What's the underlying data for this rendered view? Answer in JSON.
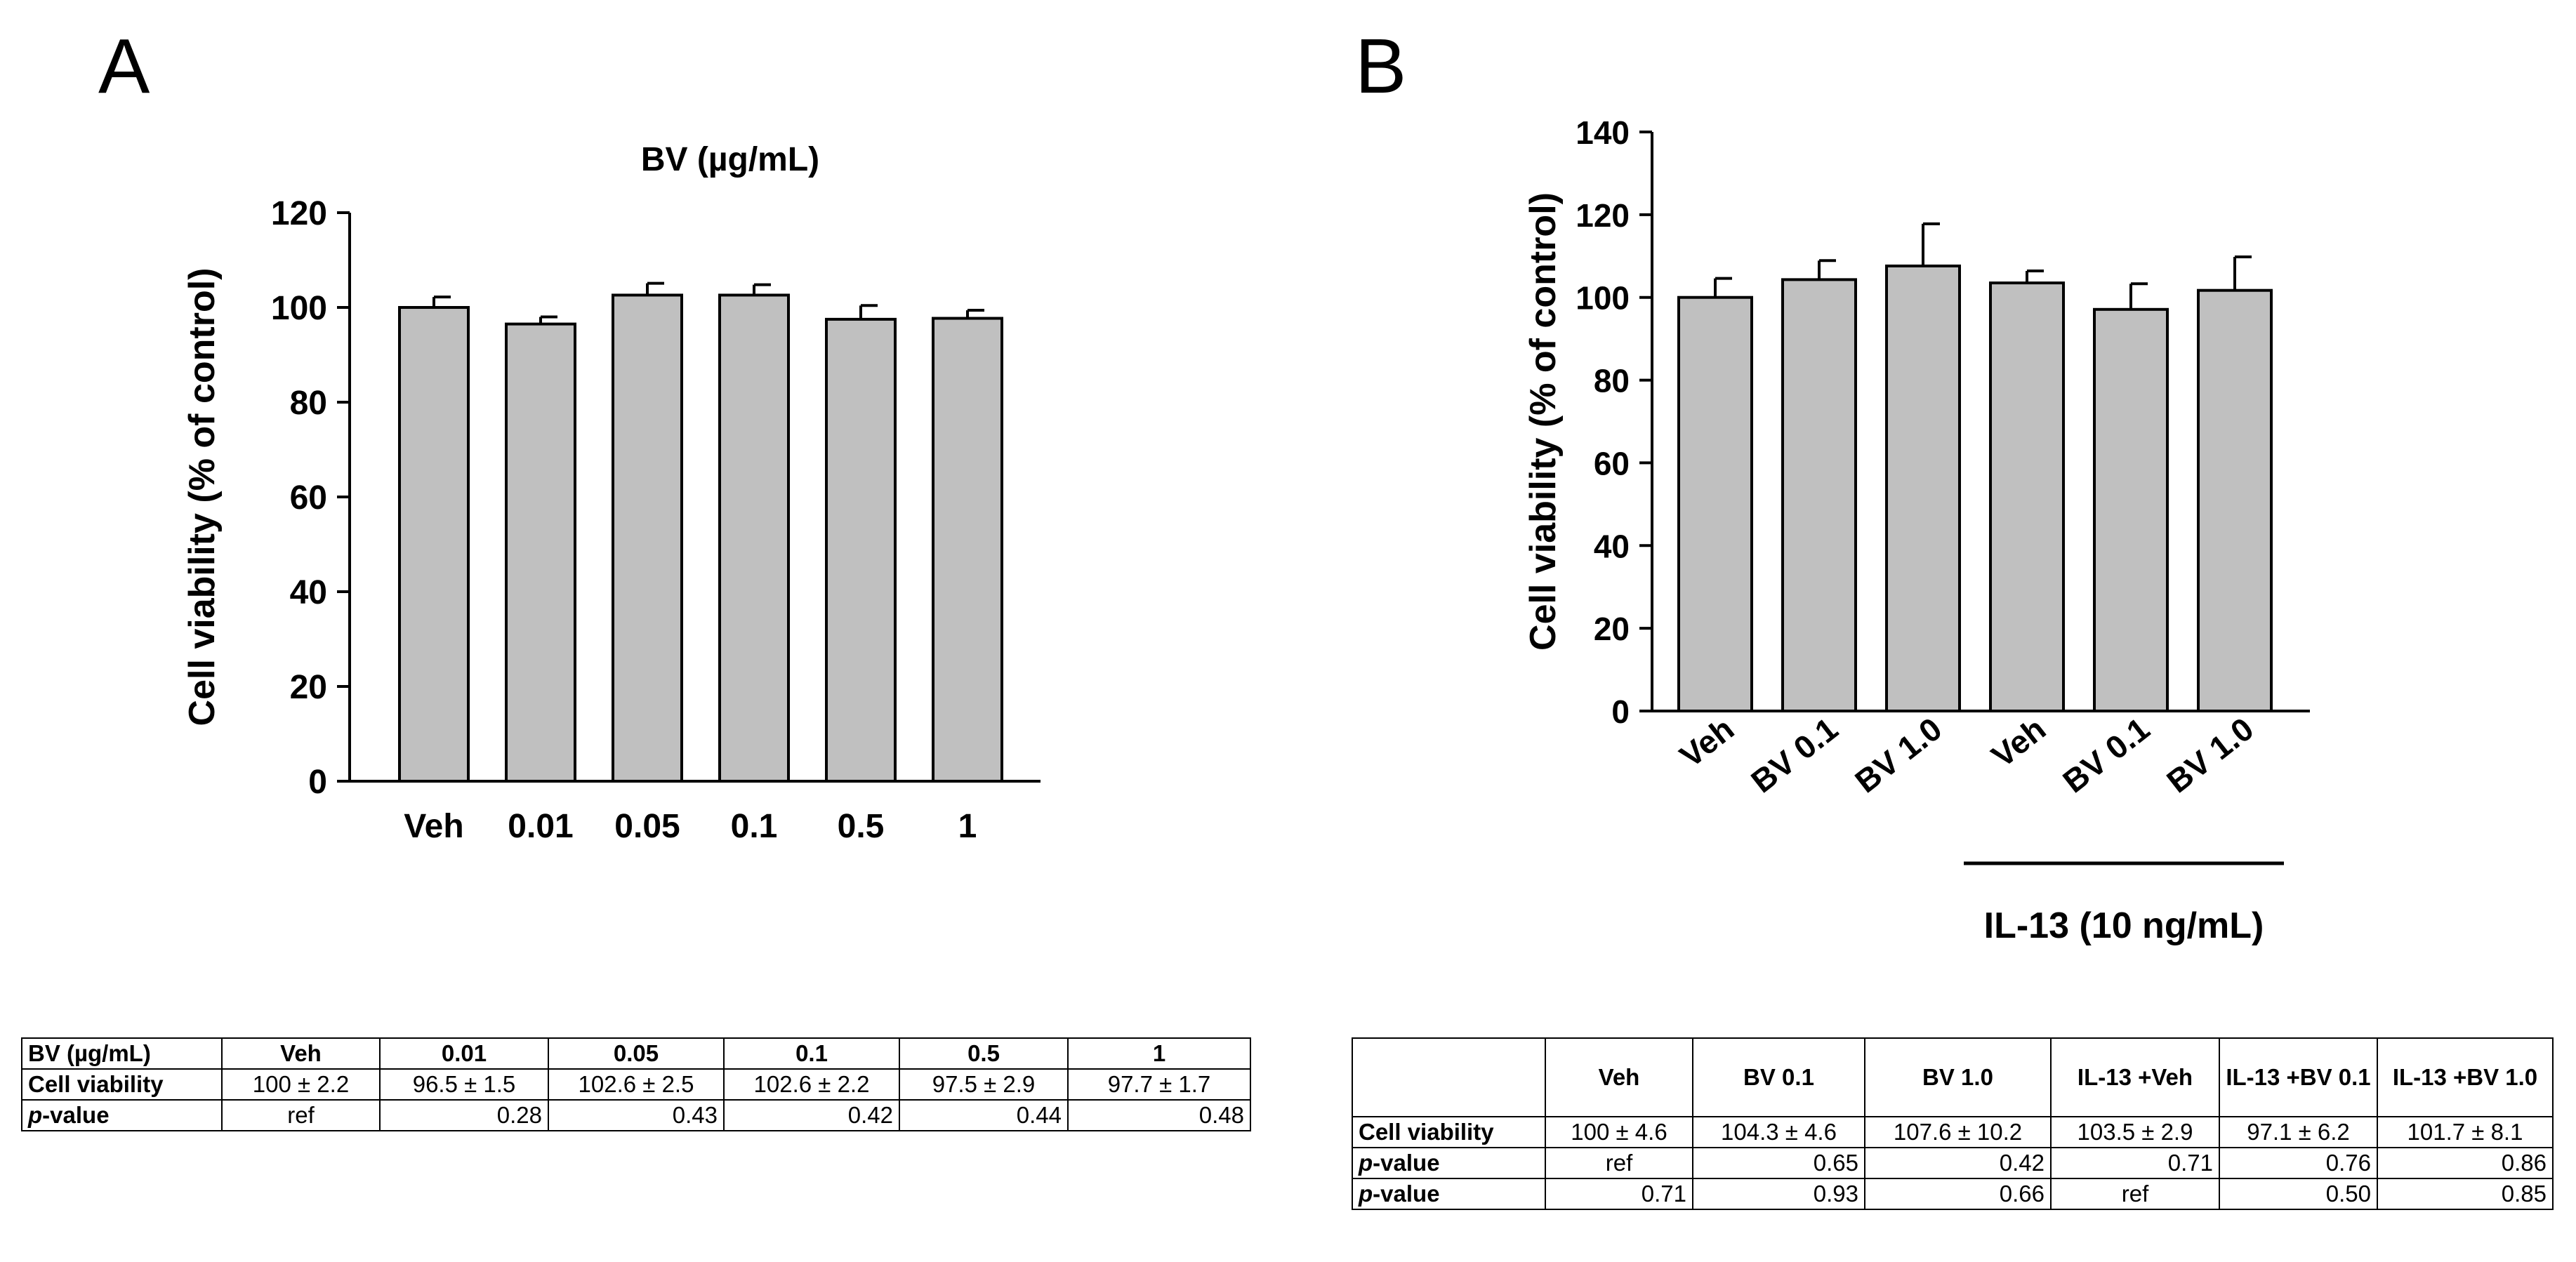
{
  "figure": {
    "panel_a_label": "A",
    "panel_b_label": "B"
  },
  "chart_data": [
    {
      "type": "bar",
      "title": "BV (µg/mL)",
      "xlabel": "",
      "ylabel": "Cell viability (% of control)",
      "ylim": [
        0,
        120
      ],
      "yticks": [
        0,
        20,
        40,
        60,
        80,
        100,
        120
      ],
      "categories": [
        "Veh",
        "0.01",
        "0.05",
        "0.1",
        "0.5",
        "1"
      ],
      "values": [
        100,
        96.5,
        102.6,
        102.6,
        97.5,
        97.7
      ],
      "errors": [
        2.2,
        1.5,
        2.5,
        2.2,
        2.9,
        1.7
      ],
      "bar_color": "#c0c0c0"
    },
    {
      "type": "bar",
      "title": "",
      "xlabel": "",
      "ylabel": "Cell viability (% of control)",
      "ylim": [
        0,
        140
      ],
      "yticks": [
        0,
        20,
        40,
        60,
        80,
        100,
        120,
        140
      ],
      "categories": [
        "Veh",
        "BV 0.1",
        "BV 1.0",
        "Veh",
        "BV 0.1",
        "BV 1.0"
      ],
      "values": [
        100,
        104.3,
        107.6,
        103.5,
        97.1,
        101.7
      ],
      "errors": [
        4.6,
        4.6,
        10.2,
        2.9,
        6.2,
        8.1
      ],
      "group_label": "IL-13 (10 ng/mL)",
      "bar_color": "#c0c0c0"
    }
  ],
  "table_a": {
    "header": [
      "BV (µg/mL)",
      "Veh",
      "0.01",
      "0.05",
      "0.1",
      "0.5",
      "1"
    ],
    "row_viability_label": "Cell viability",
    "row_viability": [
      "100 ± 2.2",
      "96.5 ± 1.5",
      "102.6 ± 2.5",
      "102.6 ± 2.2",
      "97.5 ± 2.9",
      "97.7 ± 1.7"
    ],
    "row_p_label_p": "p",
    "row_p_label_rest": "-value",
    "row_p": [
      "ref",
      "0.28",
      "0.43",
      "0.42",
      "0.44",
      "0.48"
    ]
  },
  "table_b": {
    "header": [
      "",
      "Veh",
      "BV 0.1",
      "BV 1.0",
      "IL-13 +Veh",
      "IL-13 +BV 0.1",
      "IL-13 +BV 1.0"
    ],
    "row_viability_label": "Cell viability",
    "row_viability": [
      "100 ± 4.6",
      "104.3 ± 4.6",
      "107.6 ± 10.2",
      "103.5 ± 2.9",
      "97.1 ± 6.2",
      "101.7 ± 8.1"
    ],
    "row_p_label_p": "p",
    "row_p_label_rest": "-value",
    "row_p1": [
      "ref",
      "0.65",
      "0.42",
      "0.71",
      "0.76",
      "0.86"
    ],
    "row_p2": [
      "0.71",
      "0.93",
      "0.66",
      "ref",
      "0.50",
      "0.85"
    ]
  }
}
